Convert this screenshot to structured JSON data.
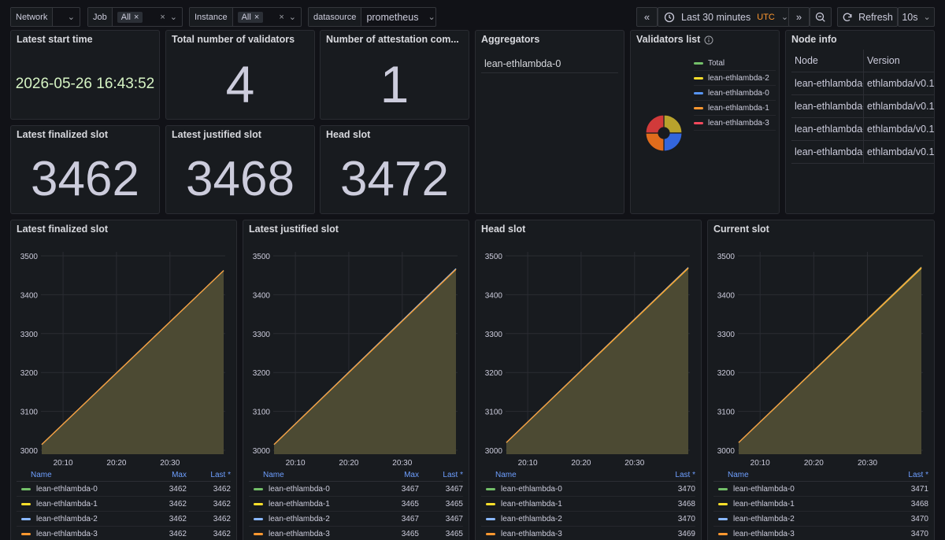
{
  "toolbar": {
    "network_label": "Network",
    "job_label": "Job",
    "job_value": "All",
    "instance_label": "Instance",
    "instance_value": "All",
    "datasource_label": "datasource",
    "datasource_value": "prometheus",
    "time_range": "Last 30 minutes",
    "timezone": "UTC",
    "refresh_label": "Refresh",
    "refresh_interval": "10s"
  },
  "stats": {
    "latest_start_time": {
      "title": "Latest start time",
      "value": "2026-05-26 16:43:52"
    },
    "total_validators": {
      "title": "Total number of validators",
      "value": "4"
    },
    "attestation_committees": {
      "title": "Number of attestation com...",
      "value": "1"
    },
    "latest_finalized": {
      "title": "Latest finalized slot",
      "value": "3462"
    },
    "latest_justified": {
      "title": "Latest justified slot",
      "value": "3468"
    },
    "head_slot": {
      "title": "Head slot",
      "value": "3472"
    }
  },
  "aggregators": {
    "title": "Aggregators",
    "items": [
      "lean-ethlambda-0"
    ]
  },
  "validators_list": {
    "title": "Validators list",
    "legend": [
      {
        "label": "Total",
        "color": "#73bf69"
      },
      {
        "label": "lean-ethlambda-2",
        "color": "#fade2a"
      },
      {
        "label": "lean-ethlambda-0",
        "color": "#5794f2"
      },
      {
        "label": "lean-ethlambda-1",
        "color": "#ff9830"
      },
      {
        "label": "lean-ethlambda-3",
        "color": "#f2495c"
      }
    ],
    "pie_slice_colors": [
      "#b8a22c",
      "#3366dd",
      "#e06c1c",
      "#d13a3a"
    ]
  },
  "node_info": {
    "title": "Node info",
    "columns": [
      "Node",
      "Version"
    ],
    "rows": [
      [
        "lean-ethlambda-",
        "ethlambda/v0.1"
      ],
      [
        "lean-ethlambda-",
        "ethlambda/v0.1"
      ],
      [
        "lean-ethlambda-",
        "ethlambda/v0.1"
      ],
      [
        "lean-ethlambda-",
        "ethlambda/v0.1"
      ]
    ]
  },
  "series_colors": [
    "#73bf69",
    "#fade2a",
    "#8ab8ff",
    "#ff9830"
  ],
  "chart_data": [
    {
      "type": "line",
      "title": "Latest finalized slot",
      "x_ticks": [
        "20:10",
        "20:20",
        "20:30"
      ],
      "y_ticks": [
        3000,
        3100,
        3200,
        3300,
        3400,
        3500
      ],
      "ylim": [
        2990,
        3510
      ],
      "y_start": 3015,
      "legend_columns": [
        "Name",
        "Max",
        "Last *"
      ],
      "series": [
        {
          "name": "lean-ethlambda-0",
          "values": [
            3462,
            3462
          ]
        },
        {
          "name": "lean-ethlambda-1",
          "values": [
            3462,
            3462
          ]
        },
        {
          "name": "lean-ethlambda-2",
          "values": [
            3462,
            3462
          ]
        },
        {
          "name": "lean-ethlambda-3",
          "values": [
            3462,
            3462
          ]
        }
      ]
    },
    {
      "type": "line",
      "title": "Latest justified slot",
      "x_ticks": [
        "20:10",
        "20:20",
        "20:30"
      ],
      "y_ticks": [
        3000,
        3100,
        3200,
        3300,
        3400,
        3500
      ],
      "ylim": [
        2990,
        3510
      ],
      "y_start": 3015,
      "legend_columns": [
        "Name",
        "Max",
        "Last *"
      ],
      "series": [
        {
          "name": "lean-ethlambda-0",
          "values": [
            3467,
            3467
          ]
        },
        {
          "name": "lean-ethlambda-1",
          "values": [
            3465,
            3465
          ]
        },
        {
          "name": "lean-ethlambda-2",
          "values": [
            3467,
            3467
          ]
        },
        {
          "name": "lean-ethlambda-3",
          "values": [
            3465,
            3465
          ]
        }
      ]
    },
    {
      "type": "line",
      "title": "Head slot",
      "x_ticks": [
        "20:10",
        "20:20",
        "20:30"
      ],
      "y_ticks": [
        3000,
        3100,
        3200,
        3300,
        3400,
        3500
      ],
      "ylim": [
        2990,
        3510
      ],
      "y_start": 3020,
      "legend_columns": [
        "Name",
        "Last *"
      ],
      "series": [
        {
          "name": "lean-ethlambda-0",
          "values": [
            3470
          ]
        },
        {
          "name": "lean-ethlambda-1",
          "values": [
            3468
          ]
        },
        {
          "name": "lean-ethlambda-2",
          "values": [
            3470
          ]
        },
        {
          "name": "lean-ethlambda-3",
          "values": [
            3469
          ]
        }
      ]
    },
    {
      "type": "line",
      "title": "Current slot",
      "x_ticks": [
        "20:10",
        "20:20",
        "20:30"
      ],
      "y_ticks": [
        3000,
        3100,
        3200,
        3300,
        3400,
        3500
      ],
      "ylim": [
        2990,
        3510
      ],
      "y_start": 3020,
      "legend_columns": [
        "Name",
        "Last *"
      ],
      "series": [
        {
          "name": "lean-ethlambda-0",
          "values": [
            3471
          ]
        },
        {
          "name": "lean-ethlambda-1",
          "values": [
            3468
          ]
        },
        {
          "name": "lean-ethlambda-2",
          "values": [
            3470
          ]
        },
        {
          "name": "lean-ethlambda-3",
          "values": [
            3470
          ]
        }
      ]
    }
  ]
}
